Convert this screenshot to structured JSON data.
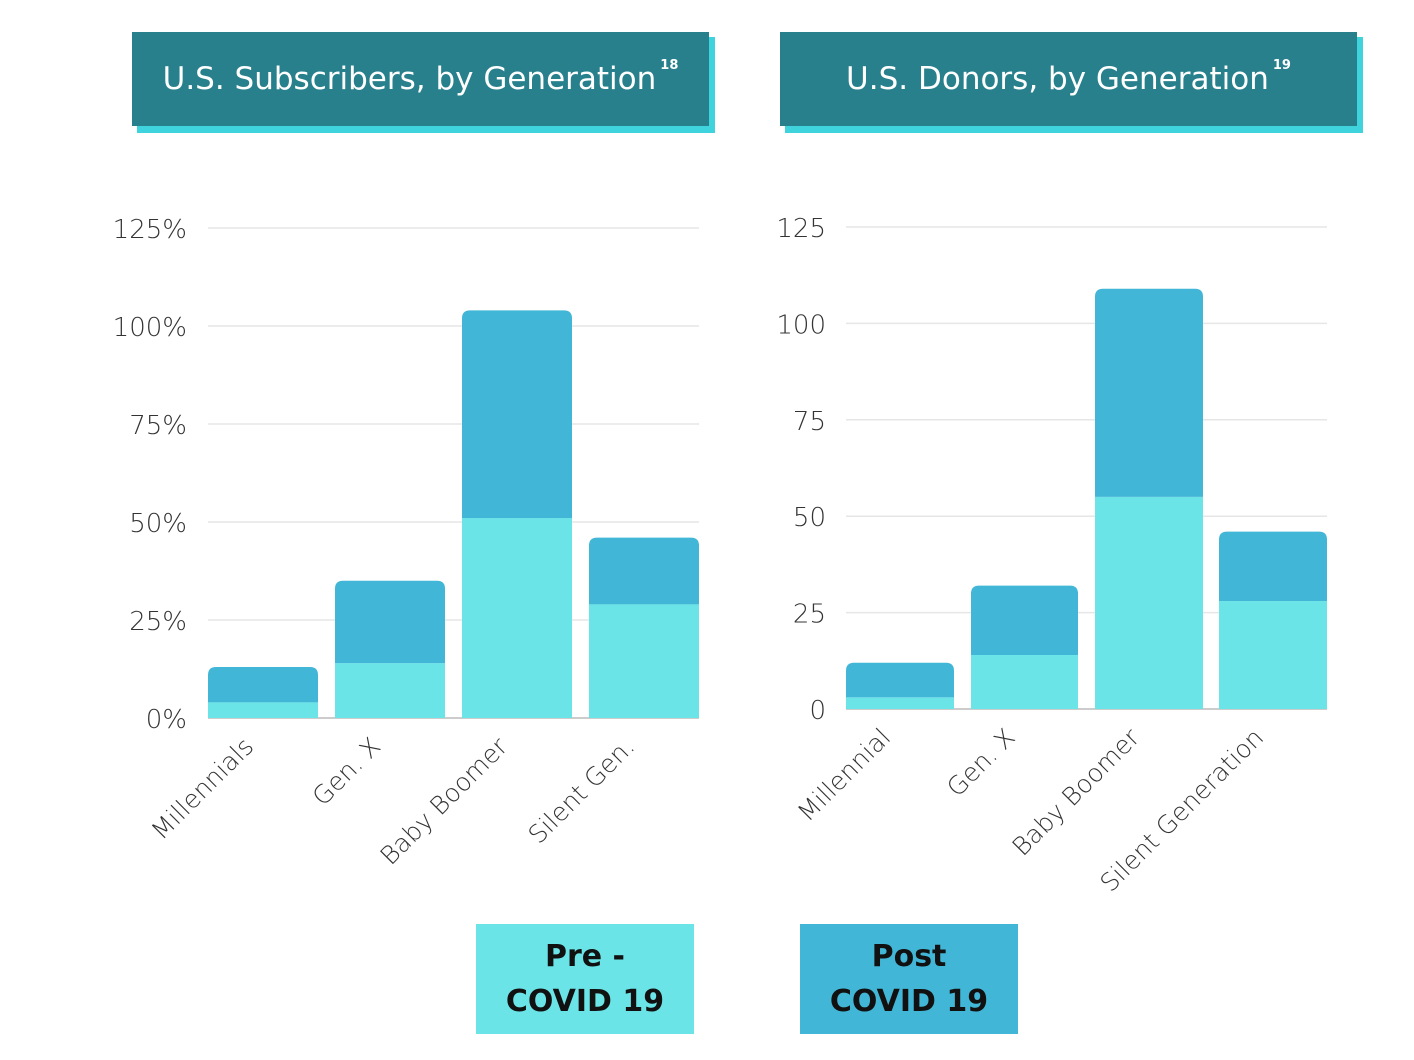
{
  "colors": {
    "pre_covid": "#6be4e8",
    "post_covid": "#42b6d6",
    "title_bg": "#27808c",
    "title_shadow": "#3fd3de",
    "grid": "#e6e6e6"
  },
  "legend": {
    "pre": {
      "line1": "Pre -",
      "line2": "COVID 19"
    },
    "post": {
      "line1": "Post",
      "line2": "COVID 19"
    }
  },
  "chart_data": [
    {
      "type": "bar",
      "stacked": true,
      "title": "U.S. Subscribers, by Generation",
      "footnote": "18",
      "categories": [
        "Millennials",
        "Gen. X",
        "Baby Boomer",
        "Silent Gen."
      ],
      "series": [
        {
          "name": "Pre - COVID 19",
          "values": [
            4,
            14,
            51,
            29
          ]
        },
        {
          "name": "Post COVID 19",
          "values": [
            9,
            21,
            53,
            17
          ]
        }
      ],
      "yticks": [
        "0%",
        "25%",
        "50%",
        "75%",
        "100%",
        "125%"
      ],
      "ylim": [
        0,
        125
      ],
      "grid": true
    },
    {
      "type": "bar",
      "stacked": true,
      "title": "U.S. Donors, by Generation",
      "footnote": "19",
      "categories": [
        "Millennial",
        "Gen. X",
        "Baby Boomer",
        "Silent Generation"
      ],
      "series": [
        {
          "name": "Pre - COVID 19",
          "values": [
            3,
            14,
            55,
            28
          ]
        },
        {
          "name": "Post COVID 19",
          "values": [
            9,
            18,
            54,
            18
          ]
        }
      ],
      "yticks": [
        "0",
        "25",
        "50",
        "75",
        "100",
        "125"
      ],
      "ylim": [
        0,
        125
      ],
      "grid": true
    }
  ]
}
